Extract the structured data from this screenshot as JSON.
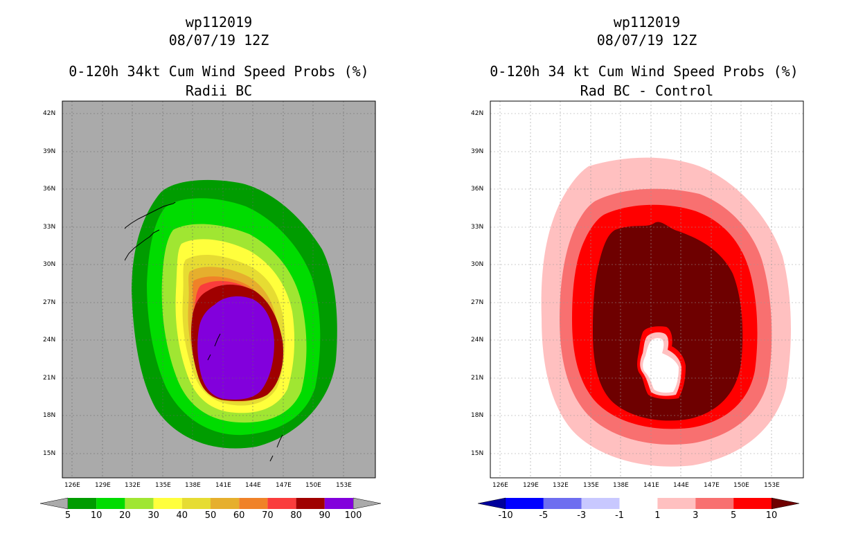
{
  "left": {
    "title1": "wp112019",
    "title2": "08/07/19 12Z",
    "title3": "0-120h 34kt Cum Wind Speed Probs (%)",
    "title4": "Radii BC",
    "colorbar_labels": [
      "5",
      "10",
      "20",
      "30",
      "40",
      "50",
      "60",
      "70",
      "80",
      "90",
      "100"
    ],
    "colorbar_colors": [
      "#009c00",
      "#00dc00",
      "#a0e632",
      "#ffff3c",
      "#e6dc32",
      "#e6af2d",
      "#f08228",
      "#fa3c3c",
      "#a00000",
      "#8200dc"
    ],
    "background": "#aaaaaa"
  },
  "right": {
    "title1": "wp112019",
    "title2": "08/07/19 12Z",
    "title3": "0-120h 34 kt Cum Wind Speed Probs (%)",
    "title4": "Rad BC - Control",
    "colorbar_labels": [
      "-10",
      "-5",
      "-3",
      "-1",
      "1",
      "3",
      "5",
      "10"
    ],
    "colorbar_colors": [
      "#00009c",
      "#0000ff",
      "#6e6ef0",
      "#c8c8ff",
      "#ffffff",
      "#ffc0c0",
      "#f87070",
      "#ff0000",
      "#6e0000"
    ],
    "background": "#ffffff"
  },
  "axes": {
    "lat_labels": [
      "42N",
      "39N",
      "36N",
      "33N",
      "30N",
      "27N",
      "24N",
      "21N",
      "18N",
      "15N"
    ],
    "lon_labels": [
      "126E",
      "129E",
      "132E",
      "135E",
      "138E",
      "141E",
      "144E",
      "147E",
      "150E",
      "153E"
    ]
  }
}
